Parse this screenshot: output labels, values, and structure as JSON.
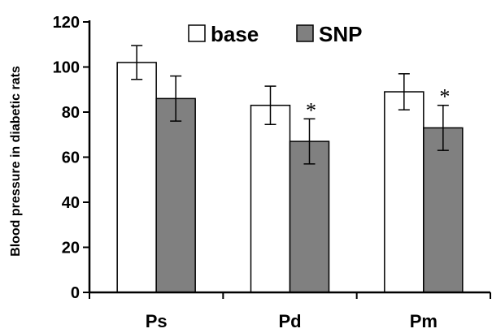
{
  "chart_data": {
    "type": "bar",
    "title": "",
    "xlabel": "",
    "ylabel": "Blood pressure in diabetic rats",
    "categories": [
      "Ps",
      "Pd",
      "Pm"
    ],
    "ylim": [
      0,
      120
    ],
    "yticks": [
      0,
      20,
      40,
      60,
      80,
      100,
      120
    ],
    "series": [
      {
        "name": "base",
        "values": [
          102,
          83,
          89
        ],
        "error": [
          7.5,
          8.5,
          8
        ],
        "color": "#ffffff",
        "significance": [
          "",
          "",
          ""
        ]
      },
      {
        "name": "SNP",
        "values": [
          86,
          67,
          73
        ],
        "error": [
          10,
          10,
          10
        ],
        "color": "#808080",
        "significance": [
          "",
          "*",
          "*"
        ]
      }
    ],
    "legend_position": "top-center",
    "grid": false
  }
}
